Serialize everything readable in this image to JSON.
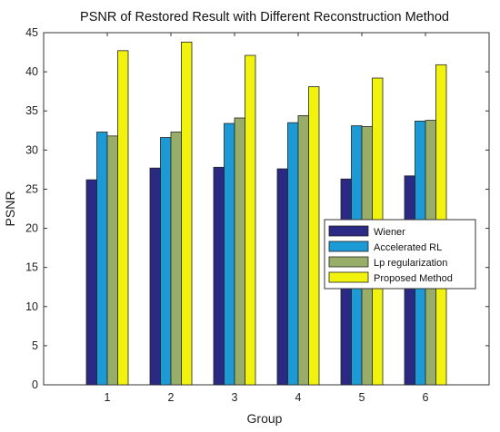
{
  "chart_data": {
    "type": "bar",
    "title": "PSNR of Restored Result with Different Reconstruction Method",
    "xlabel": "Group",
    "ylabel": "PSNR",
    "categories": [
      "1",
      "2",
      "3",
      "4",
      "5",
      "6"
    ],
    "ylim": [
      0,
      45
    ],
    "yticks": [
      "0",
      "5",
      "10",
      "15",
      "20",
      "25",
      "30",
      "35",
      "40",
      "45"
    ],
    "grid": false,
    "legend_position": "center-right",
    "series": [
      {
        "name": "Wiener",
        "color": "#2b2a83",
        "values": [
          26.2,
          27.7,
          27.8,
          27.6,
          26.3,
          26.7
        ]
      },
      {
        "name": "Accelerated RL",
        "color": "#1c9ad6",
        "values": [
          32.3,
          31.6,
          33.4,
          33.5,
          33.1,
          33.7
        ]
      },
      {
        "name": "Lp regularization",
        "color": "#98ad67",
        "values": [
          31.8,
          32.3,
          34.1,
          34.4,
          33.0,
          33.8
        ]
      },
      {
        "name": "Proposed Method",
        "color": "#f2f20f",
        "values": [
          42.7,
          43.8,
          42.1,
          38.1,
          39.2,
          40.9
        ]
      }
    ]
  }
}
